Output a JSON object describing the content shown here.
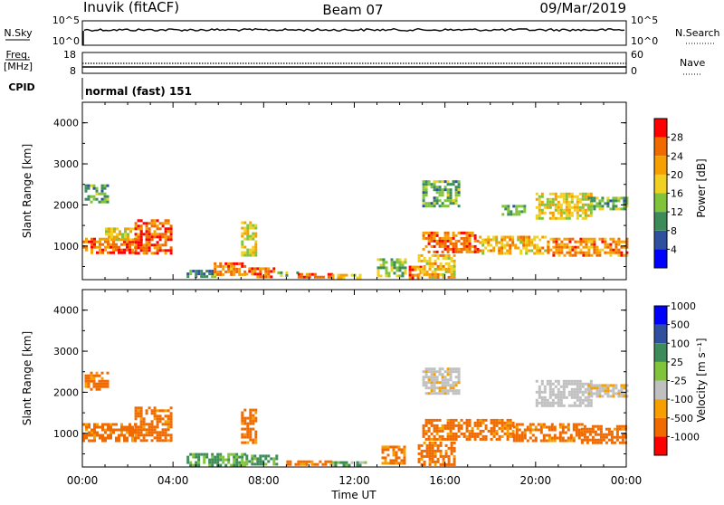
{
  "header": {
    "station": "Inuvik (fitACF)",
    "beam": "Beam 07",
    "date": "09/Mar/2019"
  },
  "noise_panel": {
    "left_label": "N.Sky",
    "left_ticks": [
      "10^5",
      "10^0"
    ],
    "right_ticks": [
      "10^5",
      "10^0"
    ],
    "right_label": "N.Search"
  },
  "freq_panel": {
    "left_label_line1": "Freq.",
    "left_label_line2": "[MHz]",
    "left_ticks": [
      "18",
      "8"
    ],
    "right_ticks": [
      "60",
      "0"
    ],
    "right_label": "Nave"
  },
  "cpid": {
    "label": "CPID",
    "mode": "normal (fast) 151"
  },
  "colors": {
    "power_scale": [
      "#0000ff",
      "#2f4f9f",
      "#3c8c5a",
      "#7fc43a",
      "#f0d020",
      "#f5a000",
      "#f06a00",
      "#ff0000"
    ],
    "velocity_scale": [
      "#ff0000",
      "#f06a00",
      "#f5a000",
      "#c0c0c0",
      "#7fc43a",
      "#3c8c5a",
      "#2f4f9f",
      "#0000ff"
    ]
  },
  "chart_data": [
    {
      "type": "heatmap",
      "name": "power",
      "ylabel": "Slant Range [km]",
      "yticks": [
        "1000",
        "2000",
        "3000",
        "4000"
      ],
      "ylim": [
        180,
        4500
      ],
      "xlim": [
        0,
        24
      ],
      "colorbar_label": "Power [dB]",
      "colorbar_ticks": [
        "4",
        "8",
        "12",
        "16",
        "20",
        "24",
        "28"
      ],
      "colorbar_range": [
        0,
        32
      ],
      "regions": [
        {
          "t0": 0.1,
          "t1": 1.1,
          "r0": 2100,
          "r1": 2500,
          "v": 12
        },
        {
          "t0": 0.0,
          "t1": 2.3,
          "r0": 820,
          "r1": 1200,
          "v": 26
        },
        {
          "t0": 1.0,
          "t1": 2.6,
          "r0": 1150,
          "r1": 1450,
          "v": 18
        },
        {
          "t0": 2.3,
          "t1": 3.9,
          "r0": 850,
          "r1": 1650,
          "v": 27
        },
        {
          "t0": 4.6,
          "t1": 5.8,
          "r0": 250,
          "r1": 420,
          "v": 10
        },
        {
          "t0": 5.8,
          "t1": 7.2,
          "r0": 280,
          "r1": 600,
          "v": 24
        },
        {
          "t0": 7.0,
          "t1": 7.6,
          "r0": 800,
          "r1": 1600,
          "v": 18
        },
        {
          "t0": 7.2,
          "t1": 8.4,
          "r0": 260,
          "r1": 480,
          "v": 26
        },
        {
          "t0": 8.6,
          "t1": 9.5,
          "r0": 250,
          "r1": 380,
          "v": 12
        },
        {
          "t0": 9.5,
          "t1": 11.0,
          "r0": 220,
          "r1": 340,
          "v": 28
        },
        {
          "t0": 11.0,
          "t1": 12.5,
          "r0": 220,
          "r1": 320,
          "v": 18
        },
        {
          "t0": 13.0,
          "t1": 14.2,
          "r0": 300,
          "r1": 700,
          "v": 14
        },
        {
          "t0": 14.4,
          "t1": 14.9,
          "r0": 250,
          "r1": 520,
          "v": 26
        },
        {
          "t0": 14.8,
          "t1": 16.4,
          "r0": 250,
          "r1": 800,
          "v": 20
        },
        {
          "t0": 15.0,
          "t1": 17.5,
          "r0": 850,
          "r1": 1350,
          "v": 25
        },
        {
          "t0": 15.0,
          "t1": 16.6,
          "r0": 2000,
          "r1": 2600,
          "v": 12
        },
        {
          "t0": 17.5,
          "t1": 20.5,
          "r0": 850,
          "r1": 1250,
          "v": 20
        },
        {
          "t0": 18.5,
          "t1": 19.5,
          "r0": 1800,
          "r1": 2000,
          "v": 12
        },
        {
          "t0": 20.0,
          "t1": 22.5,
          "r0": 1650,
          "r1": 2300,
          "v": 18
        },
        {
          "t0": 20.5,
          "t1": 24.0,
          "r0": 750,
          "r1": 1200,
          "v": 24
        },
        {
          "t0": 22.3,
          "t1": 24.0,
          "r0": 1900,
          "r1": 2200,
          "v": 12
        }
      ]
    },
    {
      "type": "heatmap",
      "name": "velocity",
      "ylabel": "Slant Range [km]",
      "yticks": [
        "1000",
        "2000",
        "3000",
        "4000"
      ],
      "ylim": [
        180,
        4500
      ],
      "xlim": [
        0,
        24
      ],
      "xlabel": "Time UT",
      "xticks": [
        "00:00",
        "04:00",
        "08:00",
        "12:00",
        "16:00",
        "20:00",
        "00:00"
      ],
      "colorbar_label": "Velocity [m s⁻¹]",
      "colorbar_ticks": [
        "-1000",
        "-500",
        "-100",
        "-25",
        "25",
        "100",
        "500",
        "1000"
      ],
      "regions": [
        {
          "t0": 0.1,
          "t1": 1.1,
          "r0": 2100,
          "r1": 2500,
          "v": -200
        },
        {
          "t0": 0.0,
          "t1": 2.3,
          "r0": 820,
          "r1": 1250,
          "v": -180
        },
        {
          "t0": 2.3,
          "t1": 3.9,
          "r0": 850,
          "r1": 1650,
          "v": -200
        },
        {
          "t0": 4.6,
          "t1": 7.2,
          "r0": 250,
          "r1": 520,
          "v": 120
        },
        {
          "t0": 7.0,
          "t1": 7.6,
          "r0": 800,
          "r1": 1600,
          "v": -200
        },
        {
          "t0": 7.2,
          "t1": 8.6,
          "r0": 260,
          "r1": 480,
          "v": 150
        },
        {
          "t0": 9.0,
          "t1": 11.0,
          "r0": 220,
          "r1": 340,
          "v": -200
        },
        {
          "t0": 11.0,
          "t1": 12.5,
          "r0": 220,
          "r1": 320,
          "v": 80
        },
        {
          "t0": 13.2,
          "t1": 14.2,
          "r0": 300,
          "r1": 700,
          "v": -150
        },
        {
          "t0": 14.8,
          "t1": 16.4,
          "r0": 250,
          "r1": 800,
          "v": -180
        },
        {
          "t0": 15.0,
          "t1": 19.0,
          "r0": 850,
          "r1": 1350,
          "v": -180
        },
        {
          "t0": 15.0,
          "t1": 16.6,
          "r0": 2000,
          "r1": 2600,
          "v": -10
        },
        {
          "t0": 19.0,
          "t1": 22.0,
          "r0": 850,
          "r1": 1250,
          "v": -200
        },
        {
          "t0": 20.0,
          "t1": 22.5,
          "r0": 1650,
          "r1": 2300,
          "v": 0
        },
        {
          "t0": 22.0,
          "t1": 24.0,
          "r0": 750,
          "r1": 1200,
          "v": -250
        },
        {
          "t0": 22.3,
          "t1": 24.0,
          "r0": 1900,
          "r1": 2200,
          "v": -10
        }
      ]
    }
  ]
}
